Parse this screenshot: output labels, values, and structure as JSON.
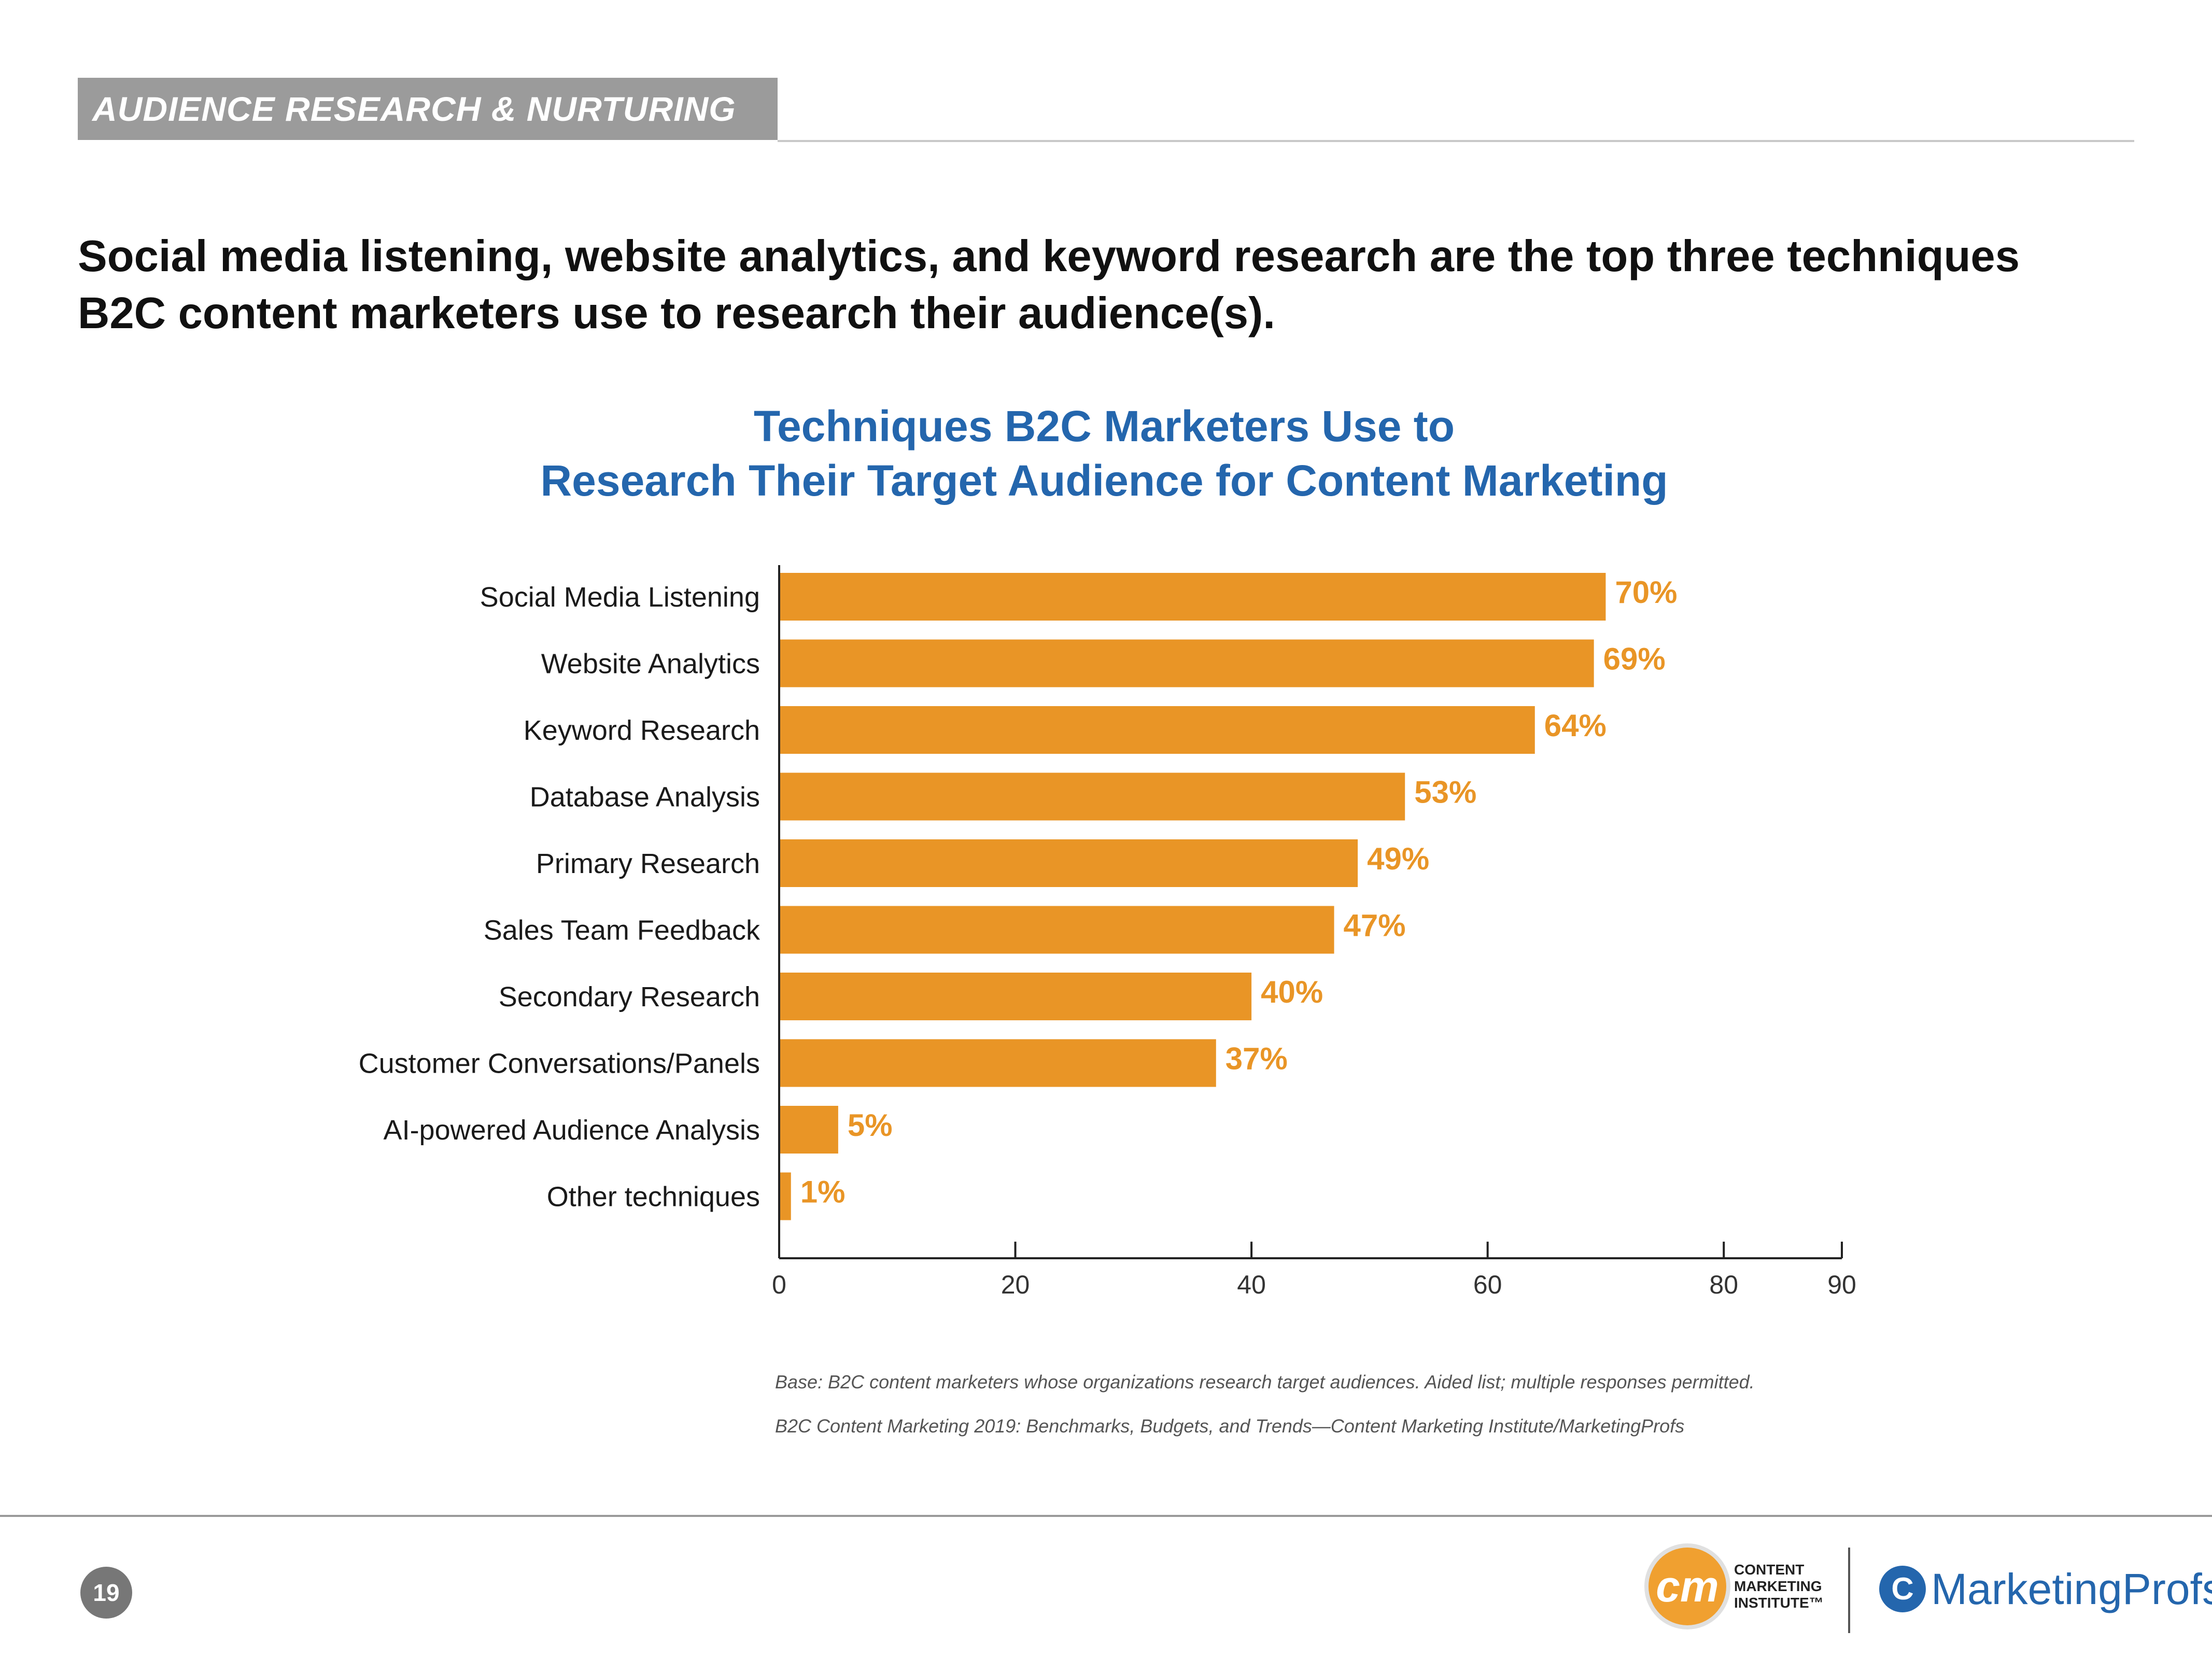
{
  "section": {
    "label": "AUDIENCE RESEARCH & NURTURING"
  },
  "headline": {
    "line1": "Social media listening, website analytics, and keyword research are the top three techniques",
    "line2": "B2C content marketers use to research their audience(s)."
  },
  "chart_data": {
    "type": "bar",
    "orientation": "horizontal",
    "title_line1": "Techniques B2C Marketers Use to",
    "title_line2": "Research Their Target Audience for Content Marketing",
    "categories": [
      "Social Media Listening",
      "Website Analytics",
      "Keyword Research",
      "Database Analysis",
      "Primary Research",
      "Sales Team Feedback",
      "Secondary Research",
      "Customer Conversations/Panels",
      "AI-powered Audience Analysis",
      "Other techniques"
    ],
    "values": [
      70,
      69,
      64,
      53,
      49,
      47,
      40,
      37,
      5,
      1
    ],
    "value_labels": [
      "70%",
      "69%",
      "64%",
      "53%",
      "49%",
      "47%",
      "40%",
      "37%",
      "5%",
      "1%"
    ],
    "xlim": [
      0,
      90
    ],
    "xticks": [
      0,
      20,
      40,
      60,
      80,
      90
    ],
    "xlabel": "",
    "ylabel": "",
    "grid": false,
    "bar_color": "#e99526",
    "label_color": "#e99526"
  },
  "notes": {
    "base": "Base: B2C content marketers whose organizations research target audiences. Aided list; multiple responses permitted.",
    "source": "B2C Content Marketing 2019: Benchmarks, Budgets, and Trends—Content Marketing Institute/MarketingProfs"
  },
  "footer": {
    "page_number": "19",
    "cmi_logo_text": "cm",
    "cmi_line1": "CONTENT",
    "cmi_line2": "MARKETING",
    "cmi_line3": "INSTITUTE™",
    "mp_icon_text": "C",
    "mp_name": "MarketingProfs"
  },
  "colors": {
    "title_blue": "#2466ad",
    "bar_orange": "#e99526",
    "section_gray": "#9b9b9b"
  }
}
